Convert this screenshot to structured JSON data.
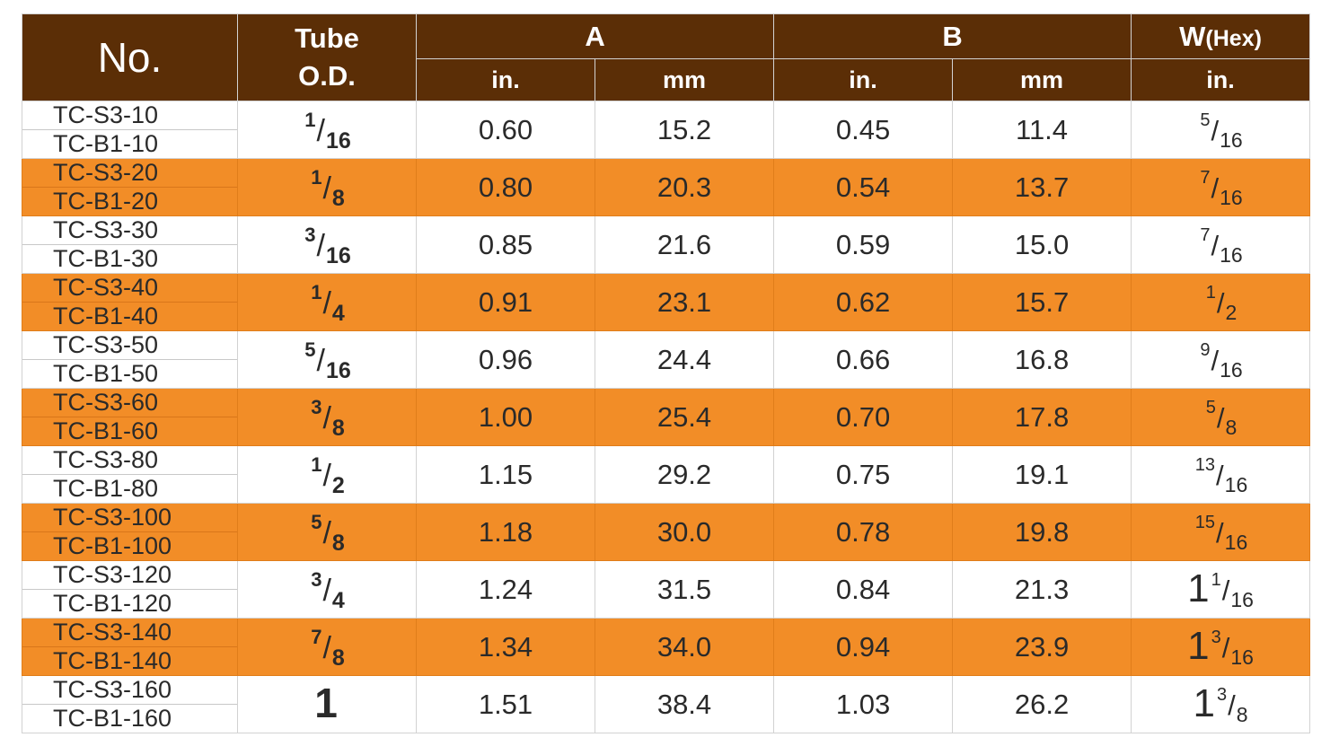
{
  "header": {
    "no": "No.",
    "tube_line1": "Tube",
    "tube_line2": "O.D.",
    "a": "A",
    "b": "B",
    "w_main": "W",
    "w_sub": "(Hex)",
    "unit_in": "in.",
    "unit_mm": "mm"
  },
  "rows": [
    {
      "code_s3": "TC-S3-10",
      "code_b1": "TC-B1-10",
      "tube": {
        "whole": "",
        "num": "1",
        "den": "16"
      },
      "a_in": "0.60",
      "a_mm": "15.2",
      "b_in": "0.45",
      "b_mm": "11.4",
      "w": {
        "whole": "",
        "num": "5",
        "den": "16"
      }
    },
    {
      "code_s3": "TC-S3-20",
      "code_b1": "TC-B1-20",
      "tube": {
        "whole": "",
        "num": "1",
        "den": "8"
      },
      "a_in": "0.80",
      "a_mm": "20.3",
      "b_in": "0.54",
      "b_mm": "13.7",
      "w": {
        "whole": "",
        "num": "7",
        "den": "16"
      }
    },
    {
      "code_s3": "TC-S3-30",
      "code_b1": "TC-B1-30",
      "tube": {
        "whole": "",
        "num": "3",
        "den": "16"
      },
      "a_in": "0.85",
      "a_mm": "21.6",
      "b_in": "0.59",
      "b_mm": "15.0",
      "w": {
        "whole": "",
        "num": "7",
        "den": "16"
      }
    },
    {
      "code_s3": "TC-S3-40",
      "code_b1": "TC-B1-40",
      "tube": {
        "whole": "",
        "num": "1",
        "den": "4"
      },
      "a_in": "0.91",
      "a_mm": "23.1",
      "b_in": "0.62",
      "b_mm": "15.7",
      "w": {
        "whole": "",
        "num": "1",
        "den": "2"
      }
    },
    {
      "code_s3": "TC-S3-50",
      "code_b1": "TC-B1-50",
      "tube": {
        "whole": "",
        "num": "5",
        "den": "16"
      },
      "a_in": "0.96",
      "a_mm": "24.4",
      "b_in": "0.66",
      "b_mm": "16.8",
      "w": {
        "whole": "",
        "num": "9",
        "den": "16"
      }
    },
    {
      "code_s3": "TC-S3-60",
      "code_b1": "TC-B1-60",
      "tube": {
        "whole": "",
        "num": "3",
        "den": "8"
      },
      "a_in": "1.00",
      "a_mm": "25.4",
      "b_in": "0.70",
      "b_mm": "17.8",
      "w": {
        "whole": "",
        "num": "5",
        "den": "8"
      }
    },
    {
      "code_s3": "TC-S3-80",
      "code_b1": "TC-B1-80",
      "tube": {
        "whole": "",
        "num": "1",
        "den": "2"
      },
      "a_in": "1.15",
      "a_mm": "29.2",
      "b_in": "0.75",
      "b_mm": "19.1",
      "w": {
        "whole": "",
        "num": "13",
        "den": "16"
      }
    },
    {
      "code_s3": "TC-S3-100",
      "code_b1": "TC-B1-100",
      "tube": {
        "whole": "",
        "num": "5",
        "den": "8"
      },
      "a_in": "1.18",
      "a_mm": "30.0",
      "b_in": "0.78",
      "b_mm": "19.8",
      "w": {
        "whole": "",
        "num": "15",
        "den": "16"
      }
    },
    {
      "code_s3": "TC-S3-120",
      "code_b1": "TC-B1-120",
      "tube": {
        "whole": "",
        "num": "3",
        "den": "4"
      },
      "a_in": "1.24",
      "a_mm": "31.5",
      "b_in": "0.84",
      "b_mm": "21.3",
      "w": {
        "whole": "1",
        "num": "1",
        "den": "16"
      }
    },
    {
      "code_s3": "TC-S3-140",
      "code_b1": "TC-B1-140",
      "tube": {
        "whole": "",
        "num": "7",
        "den": "8"
      },
      "a_in": "1.34",
      "a_mm": "34.0",
      "b_in": "0.94",
      "b_mm": "23.9",
      "w": {
        "whole": "1",
        "num": "3",
        "den": "16"
      }
    },
    {
      "code_s3": "TC-S3-160",
      "code_b1": "TC-B1-160",
      "tube": {
        "whole": "1",
        "num": "",
        "den": ""
      },
      "a_in": "1.51",
      "a_mm": "38.4",
      "b_in": "1.03",
      "b_mm": "26.2",
      "w": {
        "whole": "1",
        "num": "3",
        "den": "8"
      }
    }
  ],
  "colors": {
    "header_bg": "#5b2e06",
    "accent_row": "#f28d27",
    "plain_row": "#ffffff"
  }
}
